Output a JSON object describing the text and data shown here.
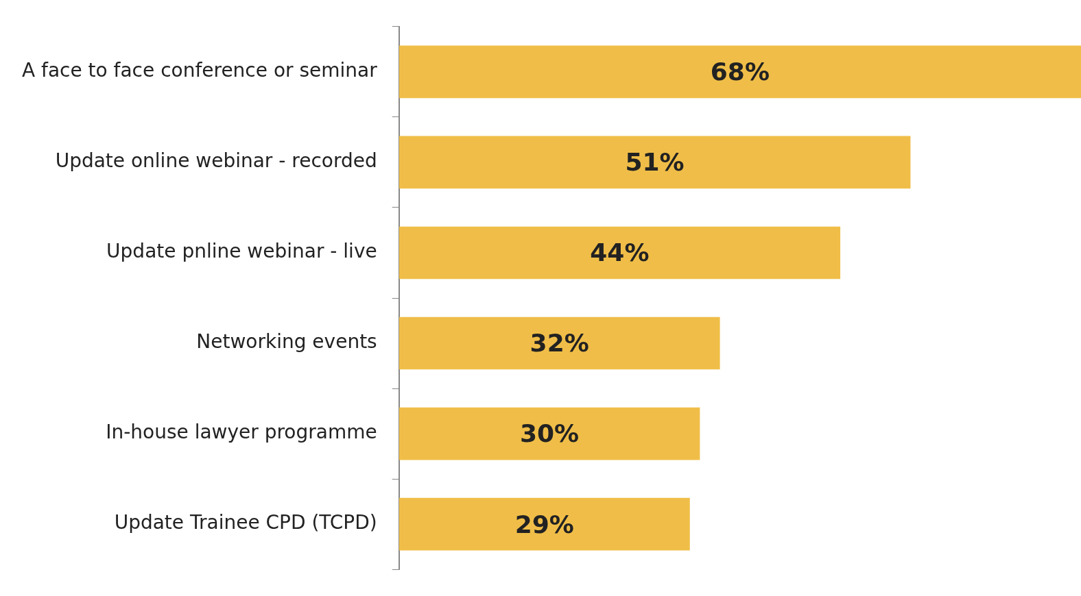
{
  "chart_data": {
    "type": "bar",
    "orientation": "horizontal",
    "categories": [
      "A face to face conference or seminar",
      "Update online webinar - recorded",
      "Update pnline webinar - live",
      "Networking events",
      "In-house lawyer programme",
      "Update Trainee CPD (TCPD)"
    ],
    "values": [
      68,
      51,
      44,
      32,
      30,
      29
    ],
    "value_labels": [
      "68%",
      "51%",
      "44%",
      "32%",
      "30%",
      "29%"
    ],
    "color": "#f0be48",
    "xlim": [
      0,
      68
    ],
    "tick_labels": "y",
    "legend": false
  }
}
